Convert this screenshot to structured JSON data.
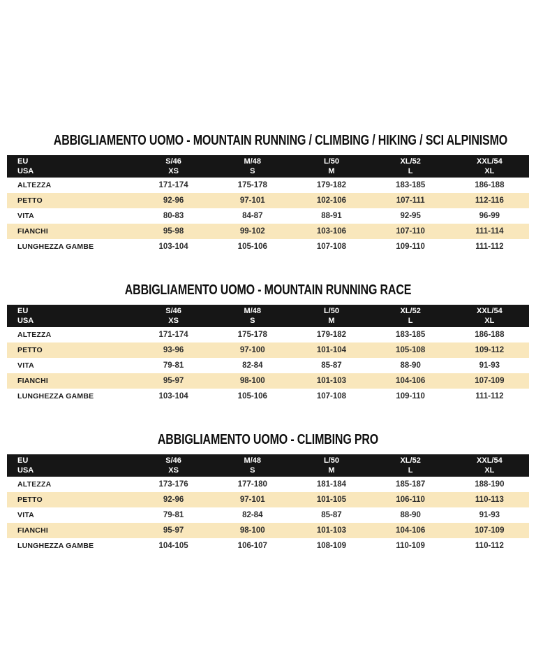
{
  "colors": {
    "header_bg": "#161616",
    "header_text": "#ffffff",
    "highlight_row": "#f9e7bc"
  },
  "tables": [
    {
      "title": "ABBIGLIAMENTO UOMO - MOUNTAIN RUNNING / CLIMBING / HIKING / SCI ALPINISMO",
      "header": {
        "eu_label": "EU",
        "usa_label": "USA",
        "columns": [
          {
            "eu": "S/46",
            "usa": "XS"
          },
          {
            "eu": "M/48",
            "usa": "S"
          },
          {
            "eu": "L/50",
            "usa": "M"
          },
          {
            "eu": "XL/52",
            "usa": "L"
          },
          {
            "eu": "XXL/54",
            "usa": "XL"
          }
        ]
      },
      "rows": [
        {
          "label": "ALTEZZA",
          "highlight": false,
          "values": [
            "171-174",
            "175-178",
            "179-182",
            "183-185",
            "186-188"
          ]
        },
        {
          "label": "PETTO",
          "highlight": true,
          "values": [
            "92-96",
            "97-101",
            "102-106",
            "107-111",
            "112-116"
          ]
        },
        {
          "label": "VITA",
          "highlight": false,
          "values": [
            "80-83",
            "84-87",
            "88-91",
            "92-95",
            "96-99"
          ]
        },
        {
          "label": "FIANCHI",
          "highlight": true,
          "values": [
            "95-98",
            "99-102",
            "103-106",
            "107-110",
            "111-114"
          ]
        },
        {
          "label": "LUNGHEZZA GAMBE",
          "highlight": false,
          "values": [
            "103-104",
            "105-106",
            "107-108",
            "109-110",
            "111-112"
          ]
        }
      ]
    },
    {
      "title": "ABBIGLIAMENTO UOMO - MOUNTAIN RUNNING RACE",
      "header": {
        "eu_label": "EU",
        "usa_label": "USA",
        "columns": [
          {
            "eu": "S/46",
            "usa": "XS"
          },
          {
            "eu": "M/48",
            "usa": "S"
          },
          {
            "eu": "L/50",
            "usa": "M"
          },
          {
            "eu": "XL/52",
            "usa": "L"
          },
          {
            "eu": "XXL/54",
            "usa": "XL"
          }
        ]
      },
      "rows": [
        {
          "label": "ALTEZZA",
          "highlight": false,
          "values": [
            "171-174",
            "175-178",
            "179-182",
            "183-185",
            "186-188"
          ]
        },
        {
          "label": "PETTO",
          "highlight": true,
          "values": [
            "93-96",
            "97-100",
            "101-104",
            "105-108",
            "109-112"
          ]
        },
        {
          "label": "VITA",
          "highlight": false,
          "values": [
            "79-81",
            "82-84",
            "85-87",
            "88-90",
            "91-93"
          ]
        },
        {
          "label": "FIANCHI",
          "highlight": true,
          "values": [
            "95-97",
            "98-100",
            "101-103",
            "104-106",
            "107-109"
          ]
        },
        {
          "label": "LUNGHEZZA GAMBE",
          "highlight": false,
          "values": [
            "103-104",
            "105-106",
            "107-108",
            "109-110",
            "111-112"
          ]
        }
      ]
    },
    {
      "title": "ABBIGLIAMENTO UOMO - CLIMBING PRO",
      "header": {
        "eu_label": "EU",
        "usa_label": "USA",
        "columns": [
          {
            "eu": "S/46",
            "usa": "XS"
          },
          {
            "eu": "M/48",
            "usa": "S"
          },
          {
            "eu": "L/50",
            "usa": "M"
          },
          {
            "eu": "XL/52",
            "usa": "L"
          },
          {
            "eu": "XXL/54",
            "usa": "XL"
          }
        ]
      },
      "rows": [
        {
          "label": "ALTEZZA",
          "highlight": false,
          "values": [
            "173-176",
            "177-180",
            "181-184",
            "185-187",
            "188-190"
          ]
        },
        {
          "label": "PETTO",
          "highlight": true,
          "values": [
            "92-96",
            "97-101",
            "101-105",
            "106-110",
            "110-113"
          ]
        },
        {
          "label": "VITA",
          "highlight": false,
          "values": [
            "79-81",
            "82-84",
            "85-87",
            "88-90",
            "91-93"
          ]
        },
        {
          "label": "FIANCHI",
          "highlight": true,
          "values": [
            "95-97",
            "98-100",
            "101-103",
            "104-106",
            "107-109"
          ]
        },
        {
          "label": "LUNGHEZZA GAMBE",
          "highlight": false,
          "values": [
            "104-105",
            "106-107",
            "108-109",
            "110-109",
            "110-112"
          ]
        }
      ]
    }
  ]
}
